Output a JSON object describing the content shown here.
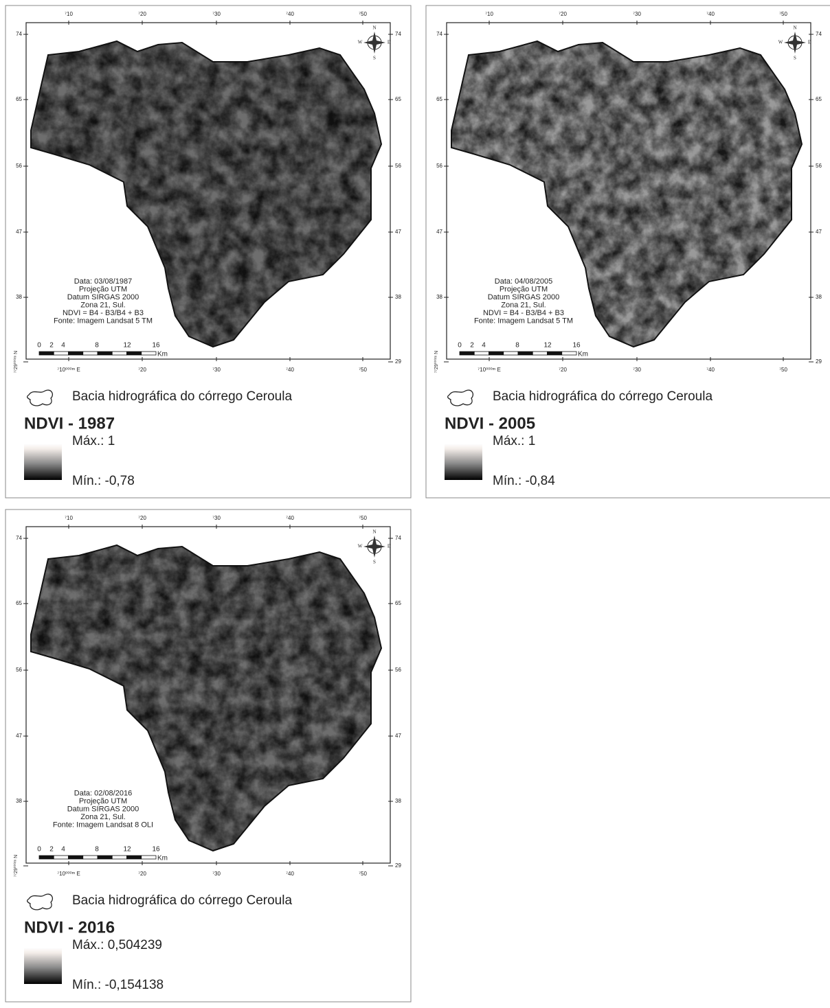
{
  "panels": [
    {
      "top_ticks": [
        "⁷10",
        "⁷20",
        "⁷30",
        "⁷40",
        "⁷50"
      ],
      "bottom_ticks": [
        "⁷10⁰⁰⁰ᵐ E",
        "⁷20",
        "⁷30",
        "⁷40",
        "⁷50"
      ],
      "left_ticks": [
        "74",
        "65",
        "56",
        "47",
        "38",
        "⁷⁷29⁰⁰⁰ᵐ N"
      ],
      "right_ticks": [
        "74",
        "65",
        "56",
        "47",
        "38",
        "29"
      ],
      "compass": [
        "N",
        "S",
        "E",
        "W"
      ],
      "info": [
        "Data: 03/08/1987",
        "Projeção UTM",
        "Datum SIRGAS 2000",
        "Zona 21, Sul.",
        "NDVI = B4 - B3/B4 + B3",
        "Fonte: Imagem Landsat 5 TM"
      ],
      "scale_ticks": [
        "0",
        "2",
        "4",
        "8",
        "12",
        "16"
      ],
      "scale_unit": "Km",
      "legend_label": "Bacia hidrográfica do  córrego Ceroula",
      "title": "NDVI - 1987",
      "max_label": "Máx.: 1",
      "min_label": "Mín.: -0,78"
    },
    {
      "top_ticks": [
        "⁷10",
        "⁷20",
        "⁷30",
        "⁷40",
        "⁷50"
      ],
      "bottom_ticks": [
        "⁷10⁰⁰⁰ᵐ E",
        "⁷20",
        "⁷30",
        "⁷40",
        "⁷50"
      ],
      "left_ticks": [
        "74",
        "65",
        "56",
        "47",
        "38",
        "⁷⁷29⁰⁰⁰ᵐ N"
      ],
      "right_ticks": [
        "74",
        "65",
        "56",
        "47",
        "38",
        "29"
      ],
      "compass": [
        "N",
        "S",
        "E",
        "W"
      ],
      "info": [
        "Data: 04/08/2005",
        "Projeção UTM",
        "Datum SIRGAS 2000",
        "Zona 21, Sul.",
        "NDVI = B4 - B3/B4 + B3",
        "Fonte: Imagem Landsat 5 TM"
      ],
      "scale_ticks": [
        "0",
        "2",
        "4",
        "8",
        "12",
        "16"
      ],
      "scale_unit": "Km",
      "legend_label": "Bacia hidrográfica do  córrego Ceroula",
      "title": "NDVI - 2005",
      "max_label": "Máx.: 1",
      "min_label": "Mín.: -0,84"
    },
    {
      "top_ticks": [
        "⁷10",
        "⁷20",
        "⁷30",
        "⁷40",
        "⁷50"
      ],
      "bottom_ticks": [
        "⁷10⁰⁰⁰ᵐ E",
        "⁷20",
        "⁷30",
        "⁷40",
        "⁷50"
      ],
      "left_ticks": [
        "74",
        "65",
        "56",
        "47",
        "38",
        "⁷⁷29⁰⁰⁰ᵐ N"
      ],
      "right_ticks": [
        "74",
        "65",
        "56",
        "47",
        "38",
        "29"
      ],
      "compass": [
        "N",
        "S",
        "E",
        "W"
      ],
      "info": [
        "Data: 02/08/2016",
        "Projeção UTM",
        "Datum SIRGAS 2000",
        "Zona 21, Sul.",
        "Fonte: Imagem Landsat 8 OLI"
      ],
      "scale_ticks": [
        "0",
        "2",
        "4",
        "8",
        "12",
        "16"
      ],
      "scale_unit": "Km",
      "legend_label": "Bacia hidrográfica do  córrego Ceroula",
      "title": "NDVI - 2016",
      "max_label": "Máx.: 0,504239",
      "min_label": "Mín.: -0,154138"
    }
  ]
}
